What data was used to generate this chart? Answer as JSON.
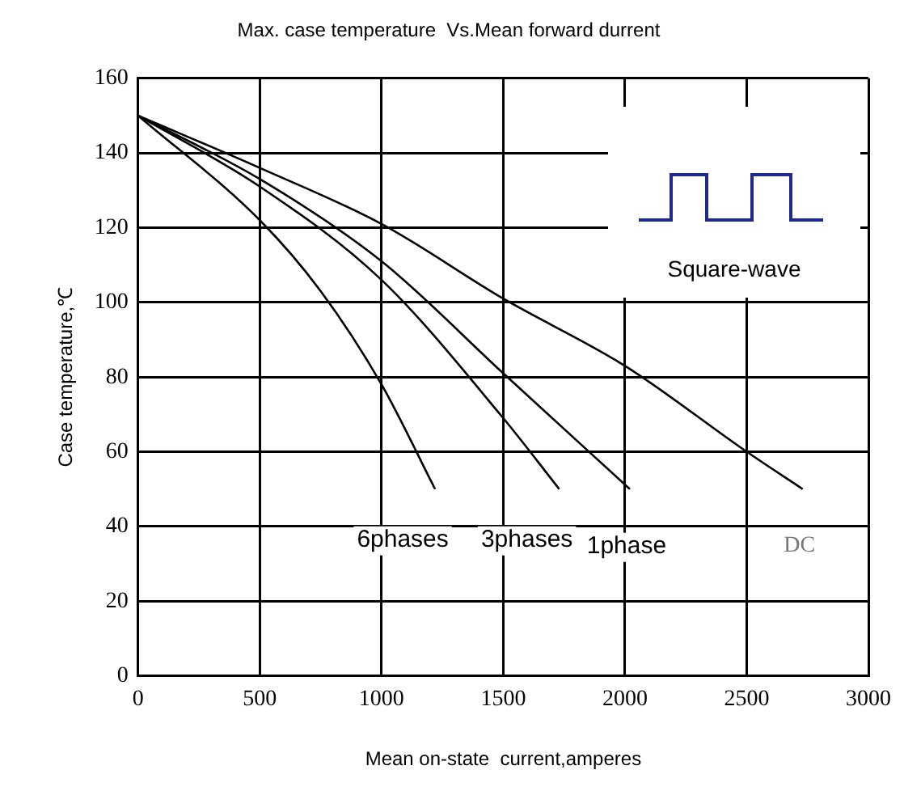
{
  "chart_data": {
    "type": "line",
    "title": "Max. case temperature  Vs.Mean forward durrent",
    "xlabel": "Mean on-state  current,amperes",
    "ylabel": "Case temperature,℃",
    "annotations": [
      "Square-wave"
    ],
    "xlim": [
      0,
      3000
    ],
    "xticks": [
      0,
      500,
      1000,
      1500,
      2000,
      2500,
      3000
    ],
    "ylim": [
      0,
      160
    ],
    "yticks": [
      0,
      20,
      40,
      60,
      80,
      100,
      120,
      140,
      160
    ],
    "grid": true,
    "legend": false,
    "marker": "none",
    "line_style": "solid",
    "series": [
      {
        "name": "6phases",
        "color": "#000000",
        "x": [
          0,
          500,
          750,
          1000,
          1220
        ],
        "values": [
          150,
          122,
          103,
          78,
          50
        ]
      },
      {
        "name": "3phases",
        "color": "#000000",
        "x": [
          0,
          500,
          1000,
          1500,
          1730
        ],
        "values": [
          150,
          131,
          106,
          69,
          50
        ]
      },
      {
        "name": "1phase",
        "color": "#000000",
        "x": [
          0,
          500,
          1000,
          1500,
          2020
        ],
        "values": [
          150,
          133,
          111,
          81,
          50
        ]
      },
      {
        "name": "DC",
        "color": "#000000",
        "x": [
          0,
          500,
          1000,
          1500,
          2000,
          2500,
          2730
        ],
        "values": [
          150,
          136,
          121,
          101,
          83,
          60,
          50
        ]
      }
    ]
  }
}
